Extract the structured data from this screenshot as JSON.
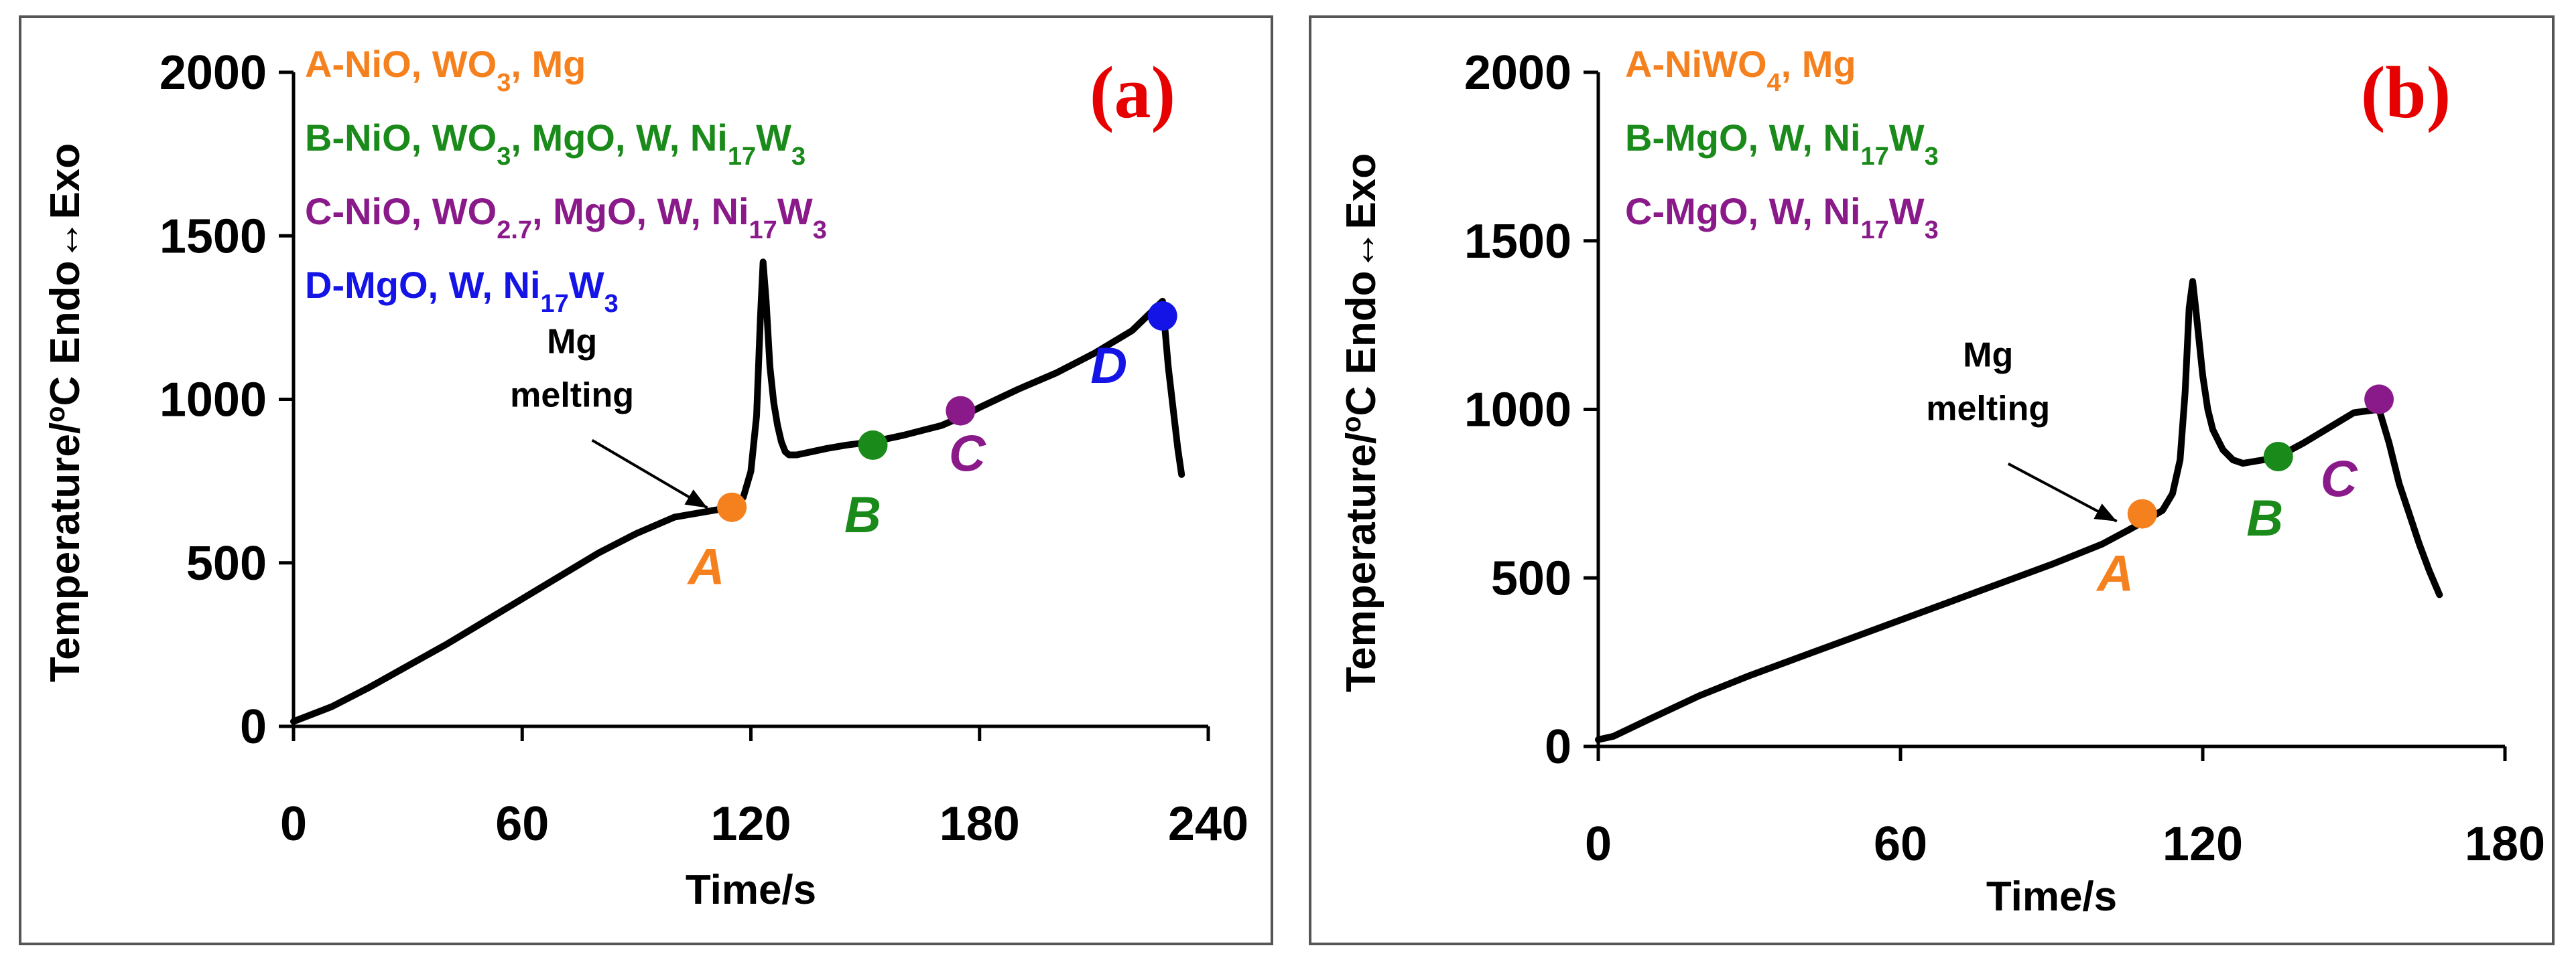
{
  "colors": {
    "A": "#f5801e",
    "B": "#1a8a1a",
    "C": "#8a1a8a",
    "D": "#1414e6",
    "panel_letter": "#e60000",
    "curve": "#000000"
  },
  "chart_data": [
    {
      "type": "line",
      "panel_label": "(a)",
      "xlabel": "Time/s",
      "ylabel": "Temperature/°C   Endo↔Exo",
      "ylabel_main": "Temperature/",
      "ylabel_degree": "o",
      "ylabel_unit": "C",
      "ylabel_extra": "Endo↔Exo",
      "xlim": [
        0,
        240
      ],
      "ylim": [
        0,
        2000
      ],
      "xticks": [
        0,
        60,
        120,
        180,
        240
      ],
      "yticks": [
        0,
        500,
        1000,
        1500,
        2000
      ],
      "legend": [
        {
          "key": "A",
          "text": "A-NiO, WO3, Mg",
          "parts": [
            [
              "A-NiO, WO",
              ""
            ],
            [
              "3",
              "sub"
            ],
            [
              ", Mg",
              ""
            ]
          ]
        },
        {
          "key": "B",
          "text": "B-NiO, WO3, MgO, W, Ni17W3",
          "parts": [
            [
              "B-NiO, WO",
              ""
            ],
            [
              "3",
              "sub"
            ],
            [
              ", MgO, W, Ni",
              ""
            ],
            [
              "17",
              "sub"
            ],
            [
              "W",
              ""
            ],
            [
              "3",
              "sub"
            ]
          ]
        },
        {
          "key": "C",
          "text": "C-NiO, WO2.7, MgO, W, Ni17W3",
          "parts": [
            [
              "C-NiO, WO",
              ""
            ],
            [
              "2.7",
              "sub"
            ],
            [
              ", MgO, W, Ni",
              ""
            ],
            [
              "17",
              "sub"
            ],
            [
              "W",
              ""
            ],
            [
              "3",
              "sub"
            ]
          ]
        },
        {
          "key": "D",
          "text": "D-MgO, W, Ni17W3",
          "parts": [
            [
              "D-MgO, W, Ni",
              ""
            ],
            [
              "17",
              "sub"
            ],
            [
              "W",
              ""
            ],
            [
              "3",
              "sub"
            ]
          ]
        }
      ],
      "annotation": {
        "line1": "Mg",
        "line2": "melting",
        "target": {
          "x": 110,
          "y": 660
        }
      },
      "points": [
        {
          "label": "A",
          "x": 115,
          "y": 670
        },
        {
          "label": "B",
          "x": 152,
          "y": 860
        },
        {
          "label": "C",
          "x": 175,
          "y": 965
        },
        {
          "label": "D",
          "x": 228,
          "y": 1255
        }
      ],
      "series": [
        {
          "name": "Temperature",
          "x": [
            0,
            10,
            20,
            30,
            40,
            50,
            60,
            70,
            80,
            90,
            100,
            110,
            115,
            118,
            120,
            121.5,
            122.5,
            123.2,
            124,
            125,
            126,
            127,
            128,
            129,
            130,
            132,
            134,
            136,
            140,
            145,
            152,
            160,
            170,
            175,
            180,
            190,
            200,
            210,
            220,
            228,
            229.5,
            231,
            232,
            233
          ],
          "y": [
            15,
            60,
            120,
            185,
            250,
            320,
            390,
            460,
            530,
            590,
            640,
            660,
            670,
            700,
            780,
            950,
            1250,
            1420,
            1300,
            1100,
            990,
            920,
            870,
            840,
            830,
            830,
            835,
            840,
            850,
            860,
            870,
            890,
            920,
            945,
            975,
            1030,
            1080,
            1140,
            1210,
            1300,
            1100,
            950,
            850,
            770
          ]
        }
      ]
    },
    {
      "type": "line",
      "panel_label": "(b)",
      "xlabel": "Time/s",
      "ylabel": "Temperature/°C   Endo↔Exo",
      "ylabel_main": "Temperature/",
      "ylabel_degree": "o",
      "ylabel_unit": "C",
      "ylabel_extra": "Endo↔Exo",
      "xlim": [
        0,
        180
      ],
      "ylim": [
        0,
        2000
      ],
      "xticks": [
        0,
        60,
        120,
        180
      ],
      "yticks": [
        0,
        500,
        1000,
        1500,
        2000
      ],
      "legend": [
        {
          "key": "A",
          "text": "A-NiWO4, Mg",
          "parts": [
            [
              "A-NiWO",
              ""
            ],
            [
              "4",
              "sub"
            ],
            [
              ", Mg",
              ""
            ]
          ]
        },
        {
          "key": "B",
          "text": "B-MgO, W, Ni17W3",
          "parts": [
            [
              "B-MgO, W, Ni",
              ""
            ],
            [
              "17",
              "sub"
            ],
            [
              "W",
              ""
            ],
            [
              "3",
              "sub"
            ]
          ]
        },
        {
          "key": "C",
          "text": "C-MgO, W, Ni17W3",
          "parts": [
            [
              "C-MgO, W, Ni",
              ""
            ],
            [
              "17",
              "sub"
            ],
            [
              "W",
              ""
            ],
            [
              "3",
              "sub"
            ]
          ]
        }
      ],
      "annotation": {
        "line1": "Mg",
        "line2": "melting",
        "target": {
          "x": 104,
          "y": 660
        }
      },
      "points": [
        {
          "label": "A",
          "x": 108,
          "y": 690
        },
        {
          "label": "B",
          "x": 135,
          "y": 860
        },
        {
          "label": "C",
          "x": 155,
          "y": 1030
        }
      ],
      "series": [
        {
          "name": "Temperature",
          "x": [
            0,
            3,
            10,
            20,
            30,
            40,
            50,
            60,
            70,
            80,
            90,
            100,
            105,
            108,
            112,
            114,
            115.5,
            116.5,
            117.3,
            118,
            118.6,
            120,
            121,
            122,
            124,
            126,
            128,
            130,
            132,
            135,
            140,
            145,
            150,
            155,
            157,
            159,
            161,
            163,
            165,
            167
          ],
          "y": [
            20,
            30,
            80,
            150,
            210,
            265,
            320,
            375,
            430,
            485,
            540,
            600,
            640,
            665,
            700,
            750,
            850,
            1050,
            1300,
            1380,
            1300,
            1100,
            1000,
            940,
            880,
            850,
            840,
            845,
            850,
            860,
            900,
            945,
            990,
            1000,
            900,
            780,
            690,
            600,
            520,
            450
          ]
        }
      ]
    }
  ]
}
